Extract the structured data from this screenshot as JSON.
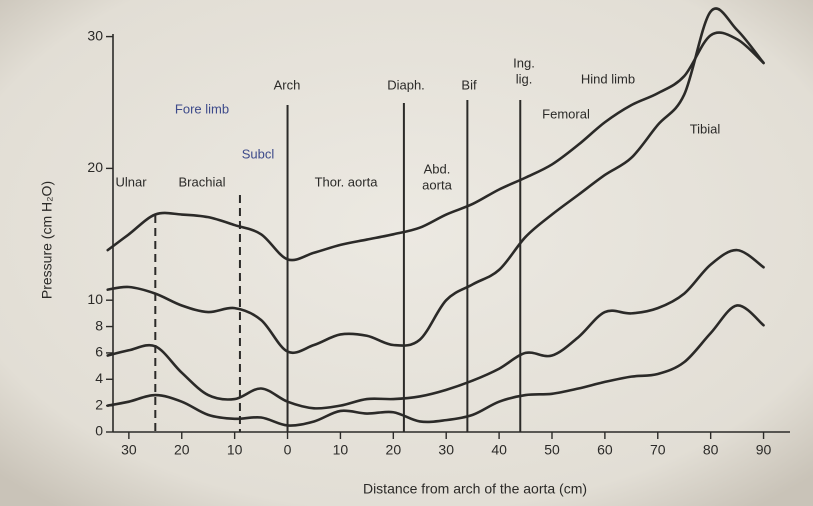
{
  "chart_data": {
    "type": "line",
    "xlabel": "Distance from arch of the aorta (cm)",
    "ylabel": "Pressure (cm H₂O)",
    "x": [
      -34,
      -30,
      -25,
      -20,
      -15,
      -10,
      -5,
      0,
      5,
      10,
      15,
      20,
      25,
      30,
      35,
      40,
      45,
      50,
      55,
      60,
      65,
      70,
      75,
      80,
      85,
      90
    ],
    "series": [
      {
        "color": "#2b2a28",
        "values": [
          13.8,
          15,
          16.5,
          16.5,
          16.3,
          15.7,
          15,
          13.1,
          13.6,
          14.2,
          14.6,
          15,
          15.5,
          16.5,
          17.3,
          18.4,
          19.3,
          20.3,
          21.8,
          23.5,
          24.8,
          25.7,
          27,
          30.1,
          29.8,
          28
        ]
      },
      {
        "color": "#2b2a28",
        "values": [
          10.8,
          11,
          10.5,
          9.6,
          9.1,
          9.4,
          8.5,
          6.1,
          6.6,
          7.4,
          7.3,
          6.6,
          7,
          10,
          11.2,
          12.3,
          14.8,
          16.5,
          18,
          19.5,
          20.8,
          23.3,
          25.6,
          31.9,
          30.5,
          28
        ]
      },
      {
        "color": "#2b2a28",
        "values": [
          5.8,
          6.2,
          6.5,
          4.5,
          2.8,
          2.5,
          3.3,
          2.3,
          1.8,
          2,
          2.5,
          2.5,
          2.7,
          3.2,
          3.9,
          4.8,
          6,
          5.8,
          7.2,
          9.1,
          9,
          9.4,
          10.5,
          12.7,
          13.8,
          12.5
        ]
      },
      {
        "color": "#2b2a28",
        "values": [
          2,
          2.3,
          2.8,
          2.3,
          1.3,
          1,
          1.1,
          0.5,
          0.8,
          1.6,
          1.4,
          1.5,
          0.8,
          0.9,
          1.3,
          2.3,
          2.8,
          2.9,
          3.3,
          3.8,
          4.2,
          4.4,
          5.3,
          7.5,
          9.6,
          8.1
        ]
      }
    ],
    "xlim": [
      -33,
      95
    ],
    "ylim": [
      0,
      30.5
    ],
    "xticks": [
      {
        "value": -30,
        "label": "30"
      },
      {
        "value": -20,
        "label": "20"
      },
      {
        "value": -10,
        "label": "10"
      },
      0,
      10,
      20,
      30,
      40,
      50,
      60,
      70,
      80,
      90
    ],
    "yticks": [
      0,
      2,
      4,
      6,
      8,
      10,
      20,
      30
    ],
    "region_boundaries": [
      -25,
      -9,
      0,
      22,
      34,
      44
    ],
    "annotations": [
      [
        "Ulnar"
      ],
      [
        "Brachial"
      ],
      [
        "Fore limb"
      ],
      [
        "Subcl"
      ],
      [
        "Arch"
      ],
      [
        "Thor. aorta"
      ],
      [
        "Diaph."
      ],
      [
        "Abd.",
        "aorta"
      ],
      [
        "Bif"
      ],
      [
        "Ing.",
        "lig."
      ],
      [
        "Femoral"
      ],
      [
        "Hind limb"
      ],
      [
        "Tibial"
      ]
    ]
  }
}
